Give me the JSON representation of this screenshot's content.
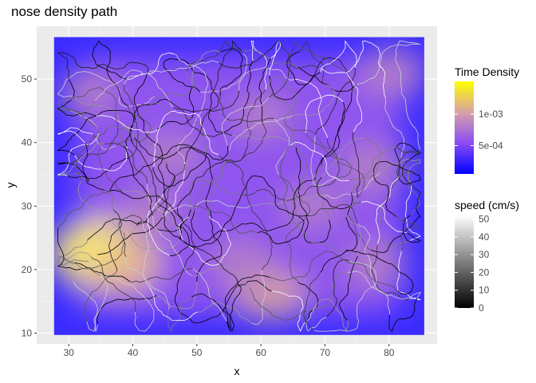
{
  "chart_data": {
    "type": "heatmap",
    "title": "nose density path",
    "xlabel": "x",
    "ylabel": "y",
    "xlim": [
      25,
      87.5
    ],
    "ylim": [
      8.3,
      58.3
    ],
    "xticks": [
      "30",
      "40",
      "50",
      "60",
      "70",
      "80"
    ],
    "xtick_values": [
      30,
      40,
      50,
      60,
      70,
      80
    ],
    "yticks": [
      "10",
      "20",
      "30",
      "40",
      "50"
    ],
    "ytick_values": [
      10,
      20,
      30,
      40,
      50
    ],
    "raster_extent": {
      "x": [
        27.7,
        85.5
      ],
      "y": [
        9.7,
        56.6
      ]
    },
    "density_hotspots": [
      {
        "x": 34.5,
        "y": 22.5,
        "density": 0.00145
      },
      {
        "x": 38.0,
        "y": 21.0,
        "density": 0.0011
      },
      {
        "x": 61.5,
        "y": 16.0,
        "density": 0.0008
      },
      {
        "x": 77.5,
        "y": 36.0,
        "density": 0.0007
      },
      {
        "x": 80.5,
        "y": 51.0,
        "density": 0.0007
      },
      {
        "x": 46.0,
        "y": 38.0,
        "density": 0.00055
      },
      {
        "x": 57.0,
        "y": 21.0,
        "density": 0.0006
      },
      {
        "x": 78.0,
        "y": 21.0,
        "density": 0.0006
      },
      {
        "x": 43.0,
        "y": 29.0,
        "density": 0.00055
      },
      {
        "x": 60.0,
        "y": 44.0,
        "density": 0.0005
      },
      {
        "x": 33.0,
        "y": 48.0,
        "density": 0.00045
      },
      {
        "x": 68.0,
        "y": 30.0,
        "density": 0.0005
      }
    ],
    "fill_legend": {
      "title": "Time Density",
      "ticks": [
        "5e-04",
        "1e-03"
      ],
      "tick_values": [
        0.0005,
        0.001
      ],
      "range": [
        5e-05,
        0.00152
      ],
      "colors": [
        "#0000ff",
        "#9b59f0",
        "#d9a0a0",
        "#ffff00"
      ]
    },
    "speed_legend": {
      "title": "speed (cm/s)",
      "ticks": [
        "0",
        "10",
        "20",
        "30",
        "40",
        "50"
      ],
      "tick_values": [
        0,
        10,
        20,
        30,
        40,
        50
      ],
      "range": [
        0,
        52
      ],
      "colors": [
        "#000000",
        "#ffffff"
      ]
    },
    "grid": true,
    "background": "#ebebeb"
  }
}
